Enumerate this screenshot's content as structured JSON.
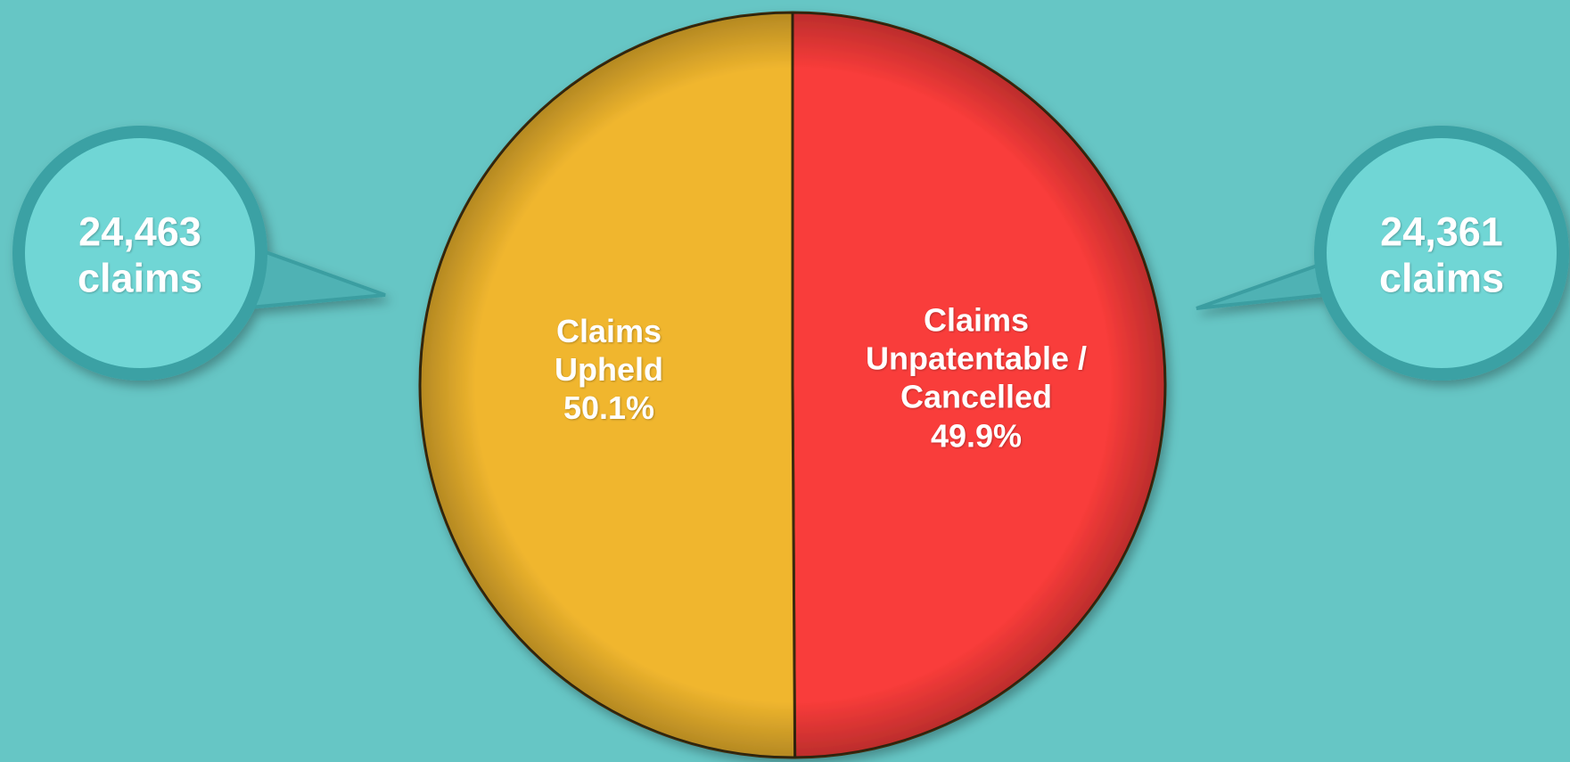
{
  "chart_data": {
    "type": "pie",
    "categories": [
      "Claims Upheld",
      "Claims Unpatentable / Cancelled"
    ],
    "values": [
      50.1,
      49.9
    ],
    "value_labels": [
      "50.1%",
      "49.9%"
    ],
    "colors": [
      "#f0b62e",
      "#f93c3a"
    ],
    "counts": [
      24463,
      24361
    ],
    "count_labels": [
      "24,463 claims",
      "24,361 claims"
    ]
  }
}
